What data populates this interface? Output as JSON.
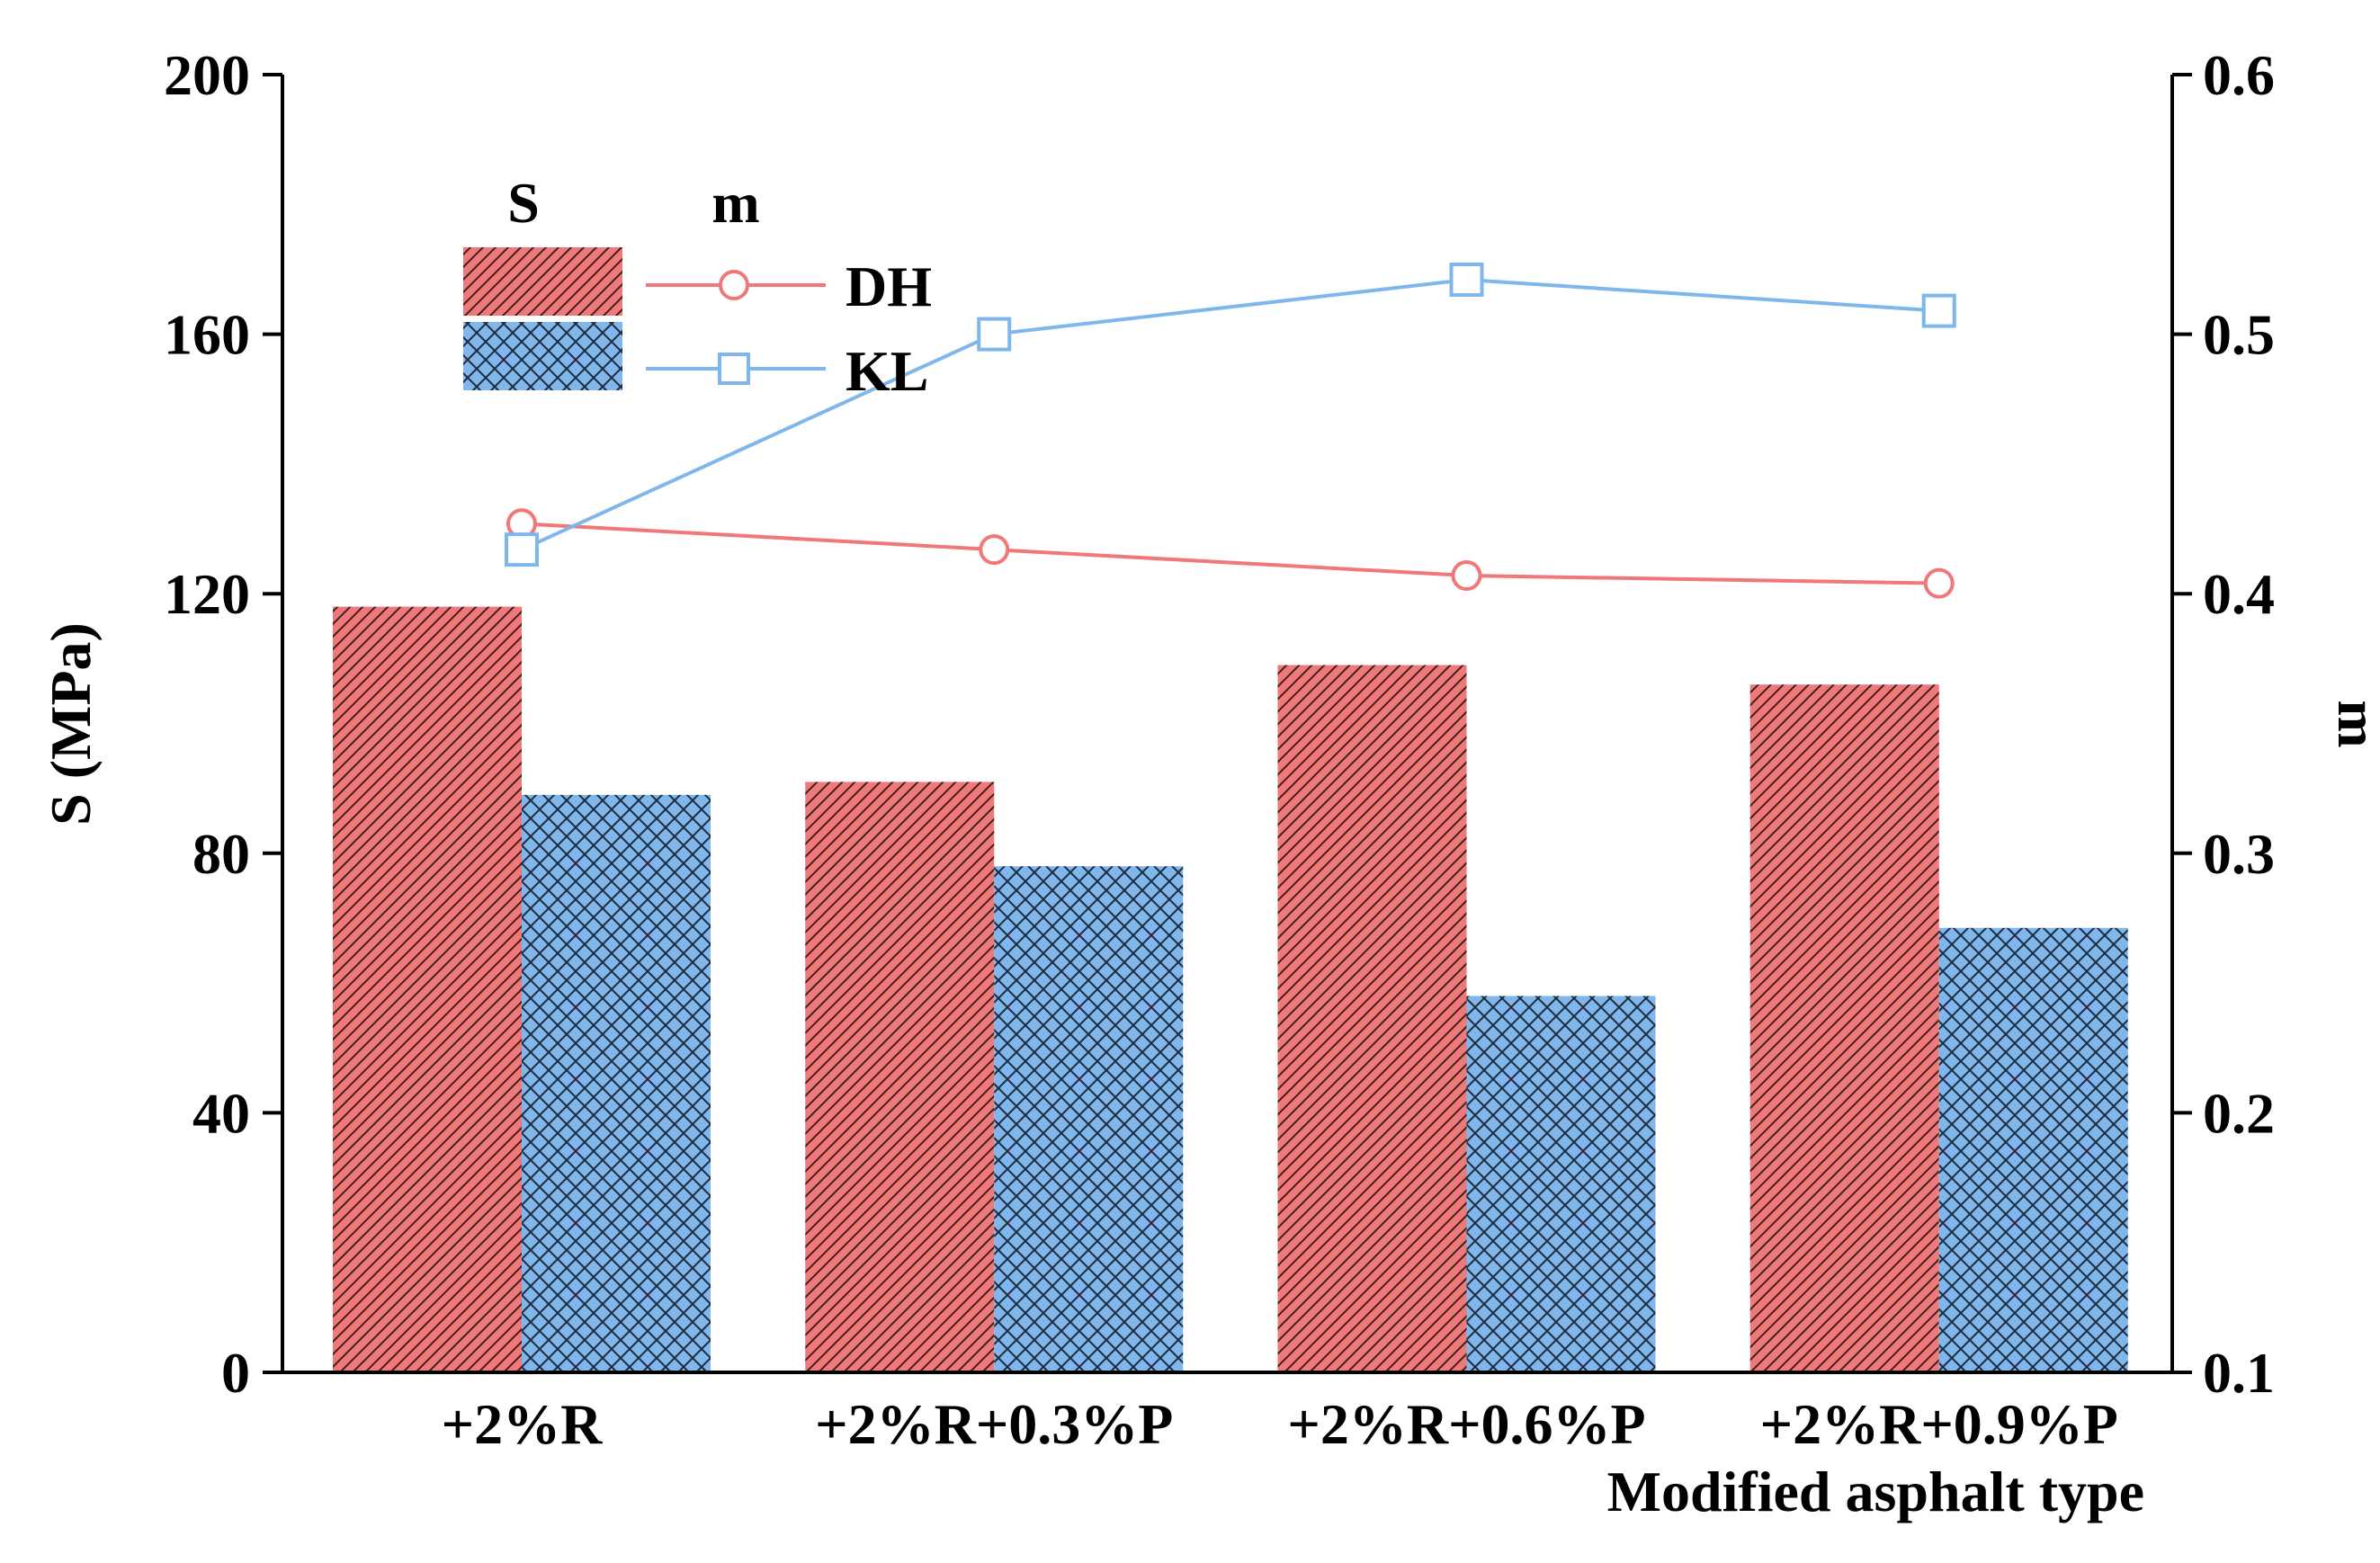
{
  "chart_data": {
    "type": "bar+line",
    "xlabel": "Modified asphalt type",
    "ylabel_left": "S (MPa)",
    "ylabel_right": "m",
    "categories": [
      "+2%R",
      "+2%R+0.3%P",
      "+2%R+0.6%P",
      "+2%R+0.9%P"
    ],
    "y_left_lim": [
      0,
      200
    ],
    "y_left_ticks": [
      "0",
      "40",
      "80",
      "120",
      "160",
      "200"
    ],
    "y_right_lim": [
      0.1,
      0.6
    ],
    "y_right_ticks": [
      "0.1",
      "0.2",
      "0.3",
      "0.4",
      "0.5",
      "0.6"
    ],
    "bar_series": [
      {
        "name": "DH",
        "color": "#f07878",
        "pattern": "diagonal-hatch",
        "values": [
          118,
          91,
          109,
          106
        ]
      },
      {
        "name": "KL",
        "color": "#7fb6ec",
        "pattern": "cross-hatch",
        "values": [
          89,
          78,
          58,
          68.5
        ]
      }
    ],
    "line_series": [
      {
        "name": "DH",
        "color": "#f07878",
        "marker": "circle",
        "values": [
          0.427,
          0.417,
          0.407,
          0.404
        ]
      },
      {
        "name": "KL",
        "color": "#7fb6ec",
        "marker": "square",
        "values": [
          0.417,
          0.5,
          0.521,
          0.509
        ]
      }
    ],
    "legend": {
      "placement": "top-left",
      "header_bars": "S",
      "header_lines": "m",
      "labels": [
        "DH",
        "KL"
      ]
    }
  }
}
